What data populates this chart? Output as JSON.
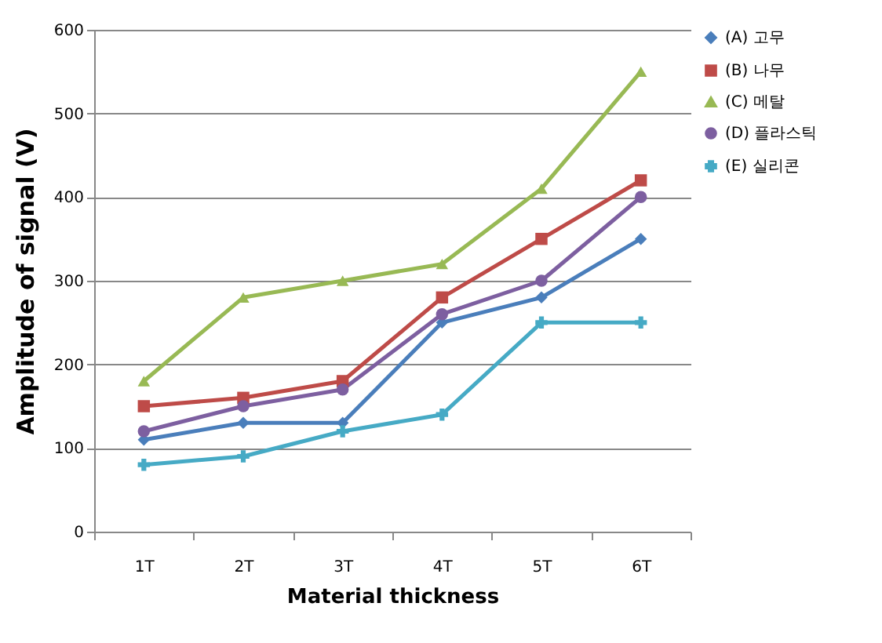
{
  "chart_data": {
    "type": "line",
    "xlabel": "Material thickness",
    "ylabel": "Amplitude of signal (V)",
    "categories": [
      "1T",
      "2T",
      "3T",
      "4T",
      "5T",
      "6T"
    ],
    "series": [
      {
        "name": "(A) 고무",
        "color": "#4a7ebb",
        "marker": "diamond",
        "values": [
          110,
          130,
          130,
          250,
          280,
          350
        ]
      },
      {
        "name": "(B) 나무",
        "color": "#be4b48",
        "marker": "square",
        "values": [
          150,
          160,
          180,
          280,
          350,
          420
        ]
      },
      {
        "name": "(C) 메탈",
        "color": "#98b954",
        "marker": "triangle",
        "values": [
          180,
          280,
          300,
          320,
          410,
          550
        ]
      },
      {
        "name": "(D) 플라스틱",
        "color": "#7d5fa0",
        "marker": "circle",
        "values": [
          120,
          150,
          170,
          260,
          300,
          400
        ]
      },
      {
        "name": "(E) 실리콘",
        "color": "#46aac5",
        "marker": "cross",
        "values": [
          80,
          90,
          120,
          140,
          250,
          250
        ]
      }
    ],
    "ylim": [
      0,
      600
    ],
    "yticks": [
      0,
      100,
      200,
      300,
      400,
      500,
      600
    ],
    "grid": "y",
    "legend": "right",
    "line_style": "solid"
  }
}
